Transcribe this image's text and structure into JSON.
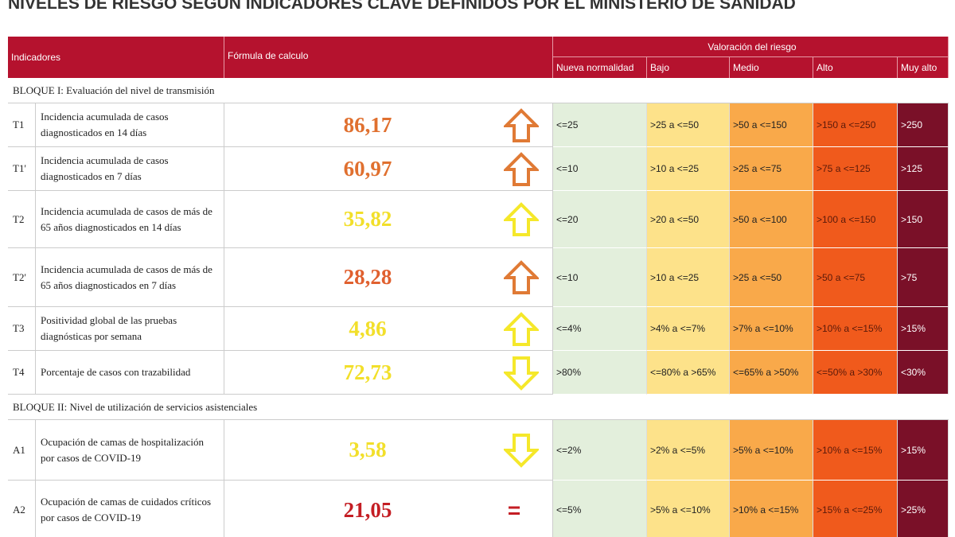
{
  "title": "NIVELES DE RIESGO SEGÚN INDICADORES CLAVE DEFINIDOS POR EL MINISTERIO DE SANIDAD",
  "header": {
    "indicators": "Indicadores",
    "formula": "Fórmula de calculo",
    "risk": "Valoración del riesgo",
    "levels": [
      "Nueva normalidad",
      "Bajo",
      "Medio",
      "Alto",
      "Muy alto"
    ]
  },
  "blocks": [
    {
      "title": "BLOQUE I: Evaluación del nivel de transmisión",
      "rows": [
        {
          "code": "T1",
          "indicator": "Incidencia acumulada de casos diagnosticados en 14 días",
          "value": "86,17",
          "ranges": [
            "<=25",
            ">25 a <=50",
            ">50 a <=150",
            ">150 a <=250",
            ">250"
          ]
        },
        {
          "code": "T1'",
          "indicator": "Incidencia acumulada de casos diagnosticados en 7 días",
          "value": "60,97",
          "ranges": [
            "<=10",
            ">10 a <=25",
            ">25 a <=75",
            ">75 a <=125",
            ">125"
          ]
        },
        {
          "code": "T2",
          "indicator": "Incidencia acumulada de casos de más de 65 años diagnosticados en 14 días",
          "value": "35,82",
          "ranges": [
            "<=20",
            ">20 a <=50",
            ">50 a <=100",
            ">100 a <=150",
            ">150"
          ]
        },
        {
          "code": "T2'",
          "indicator": "Incidencia acumulada de casos de más de 65 años diagnosticados en 7 días",
          "value": "28,28",
          "ranges": [
            "<=10",
            ">10 a <=25",
            ">25 a <=50",
            ">50 a <=75",
            ">75"
          ]
        },
        {
          "code": "T3",
          "indicator": "Positividad global de las pruebas diagnósticas por semana",
          "value": "4,86",
          "ranges": [
            "<=4%",
            ">4% a <=7%",
            ">7% a <=10%",
            ">10% a <=15%",
            ">15%"
          ]
        },
        {
          "code": "T4",
          "indicator": "Porcentaje de casos con trazabilidad",
          "value": "72,73",
          "ranges": [
            ">80%",
            "<=80% a >65%",
            "<=65% a >50%",
            "<=50% a >30%",
            "<30%"
          ]
        }
      ]
    },
    {
      "title": "BLOQUE II: Nivel de utilización de servicios asistenciales",
      "rows": [
        {
          "code": "A1",
          "indicator": "Ocupación de camas de hospitalización por casos de COVID-19",
          "value": "3,58",
          "ranges": [
            "<=2%",
            ">2% a <=5%",
            ">5% a <=10%",
            ">10% a <=15%",
            ">15%"
          ]
        },
        {
          "code": "A2",
          "indicator": "Ocupación de camas de cuidados críticos por casos de COVID-19",
          "value": "21,05",
          "symbol": "=",
          "ranges": [
            "<=5%",
            ">5% a <=10%",
            ">10% a <=15%",
            ">15% a <=25%",
            ">25%"
          ]
        }
      ]
    }
  ]
}
